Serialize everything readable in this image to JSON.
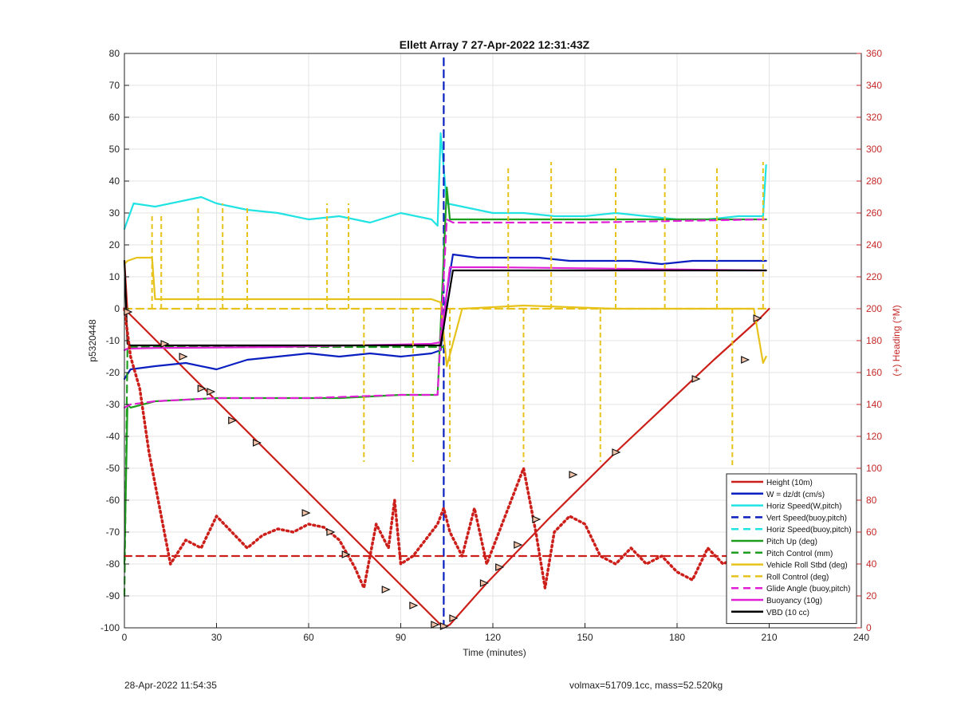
{
  "chart_data": {
    "type": "line",
    "title": "Ellett Array 7 27-Apr-2022 12:31:43Z",
    "xlabel": "Time (minutes)",
    "ylabel_left": "p5320448",
    "ylabel_right": "(+) Heading (°M)",
    "xlim": [
      0,
      240
    ],
    "ylim_left": [
      -100,
      80
    ],
    "ylim_right": [
      0,
      360
    ],
    "xticks": [
      0,
      30,
      60,
      90,
      120,
      150,
      180,
      210,
      240
    ],
    "yticks_left": [
      -100,
      -90,
      -80,
      -70,
      -60,
      -50,
      -40,
      -30,
      -20,
      -10,
      0,
      10,
      20,
      30,
      40,
      50,
      60,
      70,
      80
    ],
    "yticks_right": [
      0,
      20,
      40,
      60,
      80,
      100,
      120,
      140,
      160,
      180,
      200,
      220,
      240,
      260,
      280,
      300,
      320,
      340,
      360
    ],
    "grid": true,
    "legend_position": "bottom-right",
    "series": [
      {
        "name": "Height (10m)",
        "color": "#cc1f1a",
        "style": "solid",
        "x": [
          0,
          1,
          104,
          106,
          118,
          124,
          138,
          160,
          192,
          207,
          210
        ],
        "y": [
          15,
          -1,
          -100,
          -99,
          -86,
          -80,
          -66,
          -45,
          -16,
          -3,
          0
        ]
      },
      {
        "name": "W = dz/dt (cm/s)",
        "color": "#0a1fbf",
        "style": "solid",
        "x": [
          0,
          2,
          10,
          20,
          30,
          40,
          50,
          60,
          70,
          80,
          90,
          100,
          103,
          105,
          107,
          115,
          125,
          135,
          145,
          155,
          165,
          175,
          185,
          195,
          205,
          209
        ],
        "y": [
          -22,
          -19,
          -18,
          -17,
          -19,
          -16,
          -15,
          -14,
          -15,
          -14,
          -15,
          -14,
          -13,
          5,
          17,
          16,
          16,
          16,
          15,
          15,
          15,
          14,
          15,
          15,
          15,
          15
        ]
      },
      {
        "name": "Horiz Speed(W,pitch)",
        "color": "#22e3e3",
        "style": "solid",
        "x": [
          0,
          3,
          10,
          20,
          25,
          30,
          40,
          50,
          60,
          70,
          80,
          90,
          100,
          102,
          103,
          105,
          110,
          120,
          130,
          140,
          150,
          160,
          170,
          180,
          190,
          200,
          208,
          209
        ],
        "y": [
          25,
          33,
          32,
          34,
          35,
          33,
          31,
          30,
          28,
          29,
          27,
          30,
          28,
          26,
          55,
          33,
          32,
          30,
          30,
          29,
          29,
          30,
          29,
          28,
          28,
          29,
          29,
          45
        ]
      },
      {
        "name": "Vert Speed(buoy,pitch)",
        "color": "#0a1fbf",
        "style": "dashed",
        "x": [
          104,
          104
        ],
        "y": [
          -100,
          79
        ]
      },
      {
        "name": "Horiz Speed(buoy,pitch)",
        "color": "#22e3e3",
        "style": "dashed",
        "x": [],
        "y": []
      },
      {
        "name": "Pitch Up (deg)",
        "color": "#1e9e1e",
        "style": "solid",
        "x": [
          0,
          1,
          2,
          10,
          30,
          50,
          70,
          90,
          102,
          105,
          106,
          120,
          150,
          180,
          200,
          209
        ],
        "y": [
          -80,
          -30,
          -31,
          -29,
          -28,
          -28,
          -28,
          -27,
          -27,
          38,
          28,
          28,
          28,
          28,
          28,
          28
        ]
      },
      {
        "name": "Pitch Control (mm)",
        "color": "#1e9e1e",
        "style": "dashed",
        "x": [
          0,
          1,
          103,
          104
        ],
        "y": [
          -90,
          -12,
          -12,
          -12
        ]
      },
      {
        "name": "Vehicle Roll Stbd (deg)",
        "color": "#e6c21a",
        "style": "solid",
        "x": [
          0,
          1,
          4,
          9,
          10,
          30,
          60,
          90,
          100,
          103,
          105,
          110,
          130,
          160,
          190,
          205,
          208,
          209
        ],
        "y": [
          14,
          15,
          16,
          16,
          3,
          3,
          3,
          3,
          3,
          2,
          -18,
          0,
          1,
          0,
          0,
          0,
          -17,
          -15
        ]
      },
      {
        "name": "Roll Control (deg)",
        "color": "#e6c21a",
        "style": "dashed",
        "x": [
          0,
          9,
          10,
          100,
          103,
          110,
          200,
          209
        ],
        "y": [
          0,
          0,
          0,
          0,
          0,
          0,
          0,
          0
        ]
      },
      {
        "name": "Glide Angle (buoy,pitch)",
        "color": "#e01fd6",
        "style": "dashed",
        "x": [
          0,
          2,
          10,
          30,
          60,
          90,
          102,
          105,
          107,
          150,
          209
        ],
        "y": [
          -31,
          -30,
          -29,
          -28,
          -28,
          -27,
          -27,
          28,
          27,
          27,
          28
        ]
      },
      {
        "name": "Buoyancy (10g)",
        "color": "#e01fd6",
        "style": "solid",
        "x": [
          0,
          1,
          10,
          50,
          100,
          103,
          106,
          120,
          209
        ],
        "y": [
          -13,
          -12.5,
          -12.3,
          -12,
          -11,
          -10.5,
          13,
          13,
          12
        ]
      },
      {
        "name": "VBD (10 cc)",
        "color": "#000000",
        "style": "solid",
        "x": [
          0,
          1,
          2,
          103,
          107,
          120,
          209
        ],
        "y": [
          15,
          -11,
          -11.5,
          -11.5,
          12,
          12,
          12
        ]
      },
      {
        "name": "Heading",
        "axis": "right",
        "color": "#cc1f1a",
        "style": "dotted",
        "x": [
          0,
          2,
          5,
          8,
          12,
          15,
          20,
          25,
          30,
          35,
          40,
          45,
          50,
          55,
          60,
          65,
          70,
          75,
          78,
          82,
          86,
          88,
          90,
          94,
          98,
          102,
          104,
          106,
          110,
          114,
          118,
          122,
          126,
          130,
          134,
          137,
          140,
          145,
          150,
          155,
          160,
          165,
          170,
          175,
          180,
          185,
          190,
          195,
          200,
          205,
          209
        ],
        "y": [
          200,
          170,
          150,
          110,
          70,
          40,
          55,
          50,
          70,
          60,
          50,
          58,
          62,
          60,
          65,
          63,
          55,
          38,
          25,
          65,
          50,
          80,
          40,
          45,
          55,
          65,
          75,
          60,
          45,
          75,
          40,
          60,
          80,
          100,
          60,
          25,
          60,
          70,
          65,
          45,
          40,
          50,
          40,
          45,
          35,
          30,
          50,
          40,
          45,
          40,
          40
        ]
      },
      {
        "name": "Heading target",
        "axis": "right",
        "color": "#cc1f1a",
        "style": "dashed",
        "x": [
          0,
          209
        ],
        "y": [
          45,
          45
        ]
      }
    ],
    "roll_control_spikes": {
      "x": [
        9,
        12,
        24,
        32,
        40,
        66,
        73,
        78,
        94,
        104,
        106,
        125,
        130,
        139,
        155,
        160,
        176,
        193,
        198,
        208
      ],
      "y": [
        30,
        30,
        32,
        33,
        32,
        33,
        33,
        -48,
        -48,
        0,
        -48,
        45,
        -48,
        46,
        -48,
        45,
        45,
        45,
        -49,
        46
      ]
    },
    "yo_markers": {
      "x": [
        1,
        13,
        19,
        25,
        28,
        35,
        43,
        59,
        67,
        72,
        85,
        94,
        101,
        104,
        107,
        117,
        122,
        128,
        134,
        146,
        160,
        186,
        202,
        206
      ],
      "y": [
        -1,
        -11,
        -15,
        -25,
        -26,
        -35,
        -42,
        -64,
        -70,
        -77,
        -88,
        -93,
        -99,
        -99.5,
        -97,
        -86,
        -81,
        -74,
        -66,
        -52,
        -45,
        -22,
        -16,
        -3
      ]
    }
  },
  "footer": {
    "left": "28-Apr-2022 11:54:35",
    "right": "volmax=51709.1cc, mass=52.520kg"
  }
}
